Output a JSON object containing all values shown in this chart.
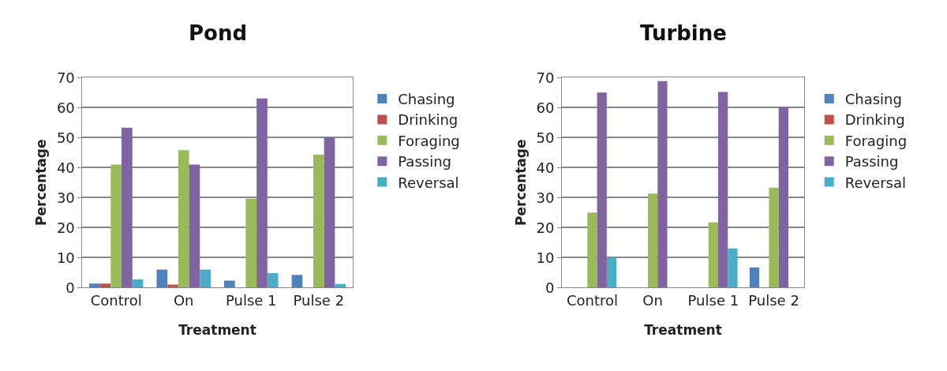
{
  "chart_data": [
    {
      "type": "bar",
      "title": "Pond",
      "xlabel": "Treatment",
      "ylabel": "Percentage",
      "categories": [
        "Control",
        "On",
        "Pulse 1",
        "Pulse 2"
      ],
      "ylim": [
        0,
        70
      ],
      "yticks": [
        0,
        10,
        20,
        30,
        40,
        50,
        60,
        70
      ],
      "grid": "y",
      "legend": "right",
      "series": [
        {
          "name": "Chasing",
          "color": "#4f81bd",
          "values": [
            1.3,
            6,
            2.3,
            4.2
          ]
        },
        {
          "name": "Drinking",
          "color": "#c0504d",
          "values": [
            1.3,
            1,
            0,
            0
          ]
        },
        {
          "name": "Foraging",
          "color": "#9bbb59",
          "values": [
            41,
            45.8,
            29.6,
            44.3
          ]
        },
        {
          "name": "Passing",
          "color": "#8064a2",
          "values": [
            53.3,
            41,
            63,
            50
          ]
        },
        {
          "name": "Reversal",
          "color": "#4bacc6",
          "values": [
            2.7,
            6,
            4.8,
            1.2
          ]
        }
      ]
    },
    {
      "type": "bar",
      "title": "Turbine",
      "xlabel": "Treatment",
      "ylabel": "Percentage",
      "categories": [
        "Control",
        "On",
        "Pulse 1",
        "Pulse 2"
      ],
      "ylim": [
        0,
        70
      ],
      "yticks": [
        0,
        10,
        20,
        30,
        40,
        50,
        60,
        70
      ],
      "grid": "y",
      "legend": "right",
      "series": [
        {
          "name": "Chasing",
          "color": "#4f81bd",
          "values": [
            0,
            0,
            0,
            6.7
          ]
        },
        {
          "name": "Drinking",
          "color": "#c0504d",
          "values": [
            0,
            0,
            0,
            0
          ]
        },
        {
          "name": "Foraging",
          "color": "#9bbb59",
          "values": [
            25,
            31.3,
            21.7,
            33.3
          ]
        },
        {
          "name": "Passing",
          "color": "#8064a2",
          "values": [
            65,
            68.8,
            65.2,
            60
          ]
        },
        {
          "name": "Reversal",
          "color": "#4bacc6",
          "values": [
            10,
            0,
            13,
            0
          ]
        }
      ]
    }
  ]
}
